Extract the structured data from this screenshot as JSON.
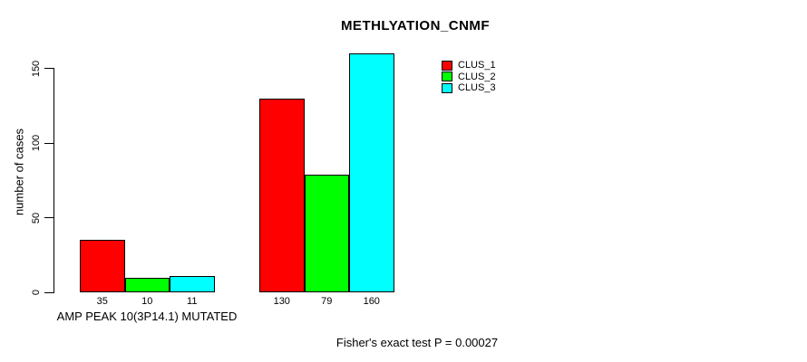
{
  "title": "METHLYATION_CNMF",
  "chart_data": {
    "type": "bar",
    "title": "METHLYATION_CNMF",
    "ylabel": "number of cases",
    "xlabel": "",
    "yticks": [
      0,
      50,
      100,
      150
    ],
    "ylim": [
      0,
      165
    ],
    "grid": false,
    "legend_position": "top-right",
    "group_labels": [
      "AMP PEAK 10(3P14.1) MUTATED",
      ""
    ],
    "series": [
      {
        "name": "CLUS_1",
        "color": "#ff0000",
        "values": [
          35,
          130
        ]
      },
      {
        "name": "CLUS_2",
        "color": "#00ff00",
        "values": [
          10,
          79
        ]
      },
      {
        "name": "CLUS_3",
        "color": "#00ffff",
        "values": [
          11,
          160
        ]
      }
    ],
    "bar_value_labels": [
      [
        "35",
        "10",
        "11"
      ],
      [
        "130",
        "79",
        "160"
      ]
    ],
    "annotation": "Fisher's exact test P = 0.00027"
  },
  "legend": {
    "items": [
      {
        "label": "CLUS_1",
        "color": "#ff0000"
      },
      {
        "label": "CLUS_2",
        "color": "#00ff00"
      },
      {
        "label": "CLUS_3",
        "color": "#00ffff"
      }
    ]
  },
  "axis": {
    "ylabel": "number of cases",
    "ytick_labels": [
      "0",
      "50",
      "100",
      "150"
    ]
  }
}
